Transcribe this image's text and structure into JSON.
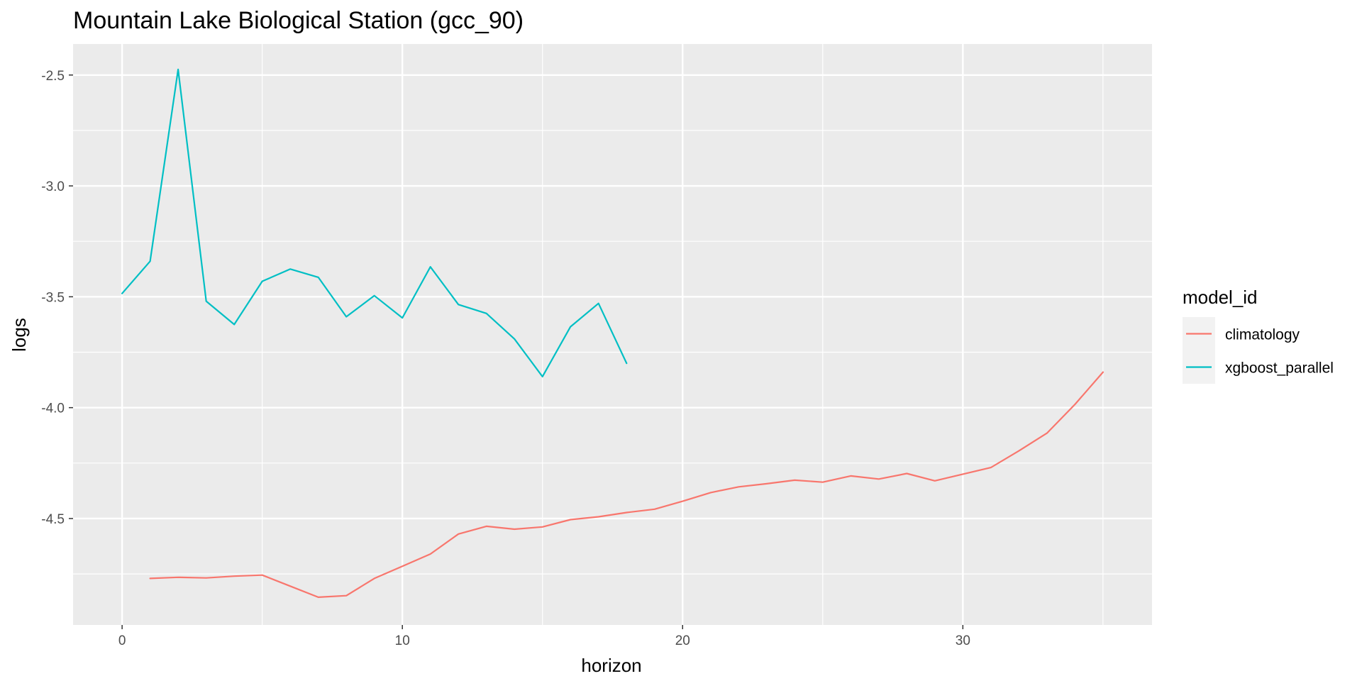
{
  "chart_data": {
    "type": "line",
    "title": "Mountain Lake Biological Station (gcc_90)",
    "xlabel": "horizon",
    "ylabel": "logs",
    "xlim": [
      -1.75,
      36.75
    ],
    "ylim": [
      -4.98,
      -2.36
    ],
    "xticks": [
      0,
      10,
      20,
      30
    ],
    "yticks": [
      -2.5,
      -3.0,
      -3.5,
      -4.0,
      -4.5
    ],
    "ytick_labels": [
      "-2.5",
      "-3.0",
      "-3.5",
      "-4.0",
      "-4.5"
    ],
    "grid": true,
    "legend": {
      "title": "model_id",
      "placement": "right"
    },
    "series": [
      {
        "name": "climatology",
        "color": "#F8766D",
        "x": [
          1,
          2,
          3,
          4,
          5,
          6,
          7,
          8,
          9,
          10,
          11,
          12,
          13,
          14,
          15,
          16,
          17,
          18,
          19,
          20,
          21,
          22,
          23,
          24,
          25,
          26,
          27,
          28,
          29,
          30,
          31,
          32,
          33,
          34,
          35
        ],
        "y": [
          -4.77,
          -4.765,
          -4.768,
          -4.76,
          -4.755,
          -4.805,
          -4.855,
          -4.848,
          -4.77,
          -4.715,
          -4.66,
          -4.57,
          -4.535,
          -4.548,
          -4.538,
          -4.505,
          -4.492,
          -4.473,
          -4.458,
          -4.422,
          -4.383,
          -4.357,
          -4.343,
          -4.327,
          -4.336,
          -4.308,
          -4.322,
          -4.297,
          -4.33,
          -4.3,
          -4.27,
          -4.195,
          -4.115,
          -3.985,
          -3.84
        ]
      },
      {
        "name": "xgboost_parallel",
        "color": "#00BFC4",
        "x": [
          0,
          1,
          2,
          3,
          4,
          5,
          6,
          7,
          8,
          9,
          10,
          11,
          12,
          13,
          14,
          15,
          16,
          17,
          18
        ],
        "y": [
          -3.485,
          -3.34,
          -2.475,
          -3.52,
          -3.625,
          -3.43,
          -3.375,
          -3.412,
          -3.59,
          -3.495,
          -3.595,
          -3.365,
          -3.535,
          -3.575,
          -3.69,
          -3.86,
          -3.635,
          -3.53,
          -3.8
        ]
      }
    ]
  }
}
